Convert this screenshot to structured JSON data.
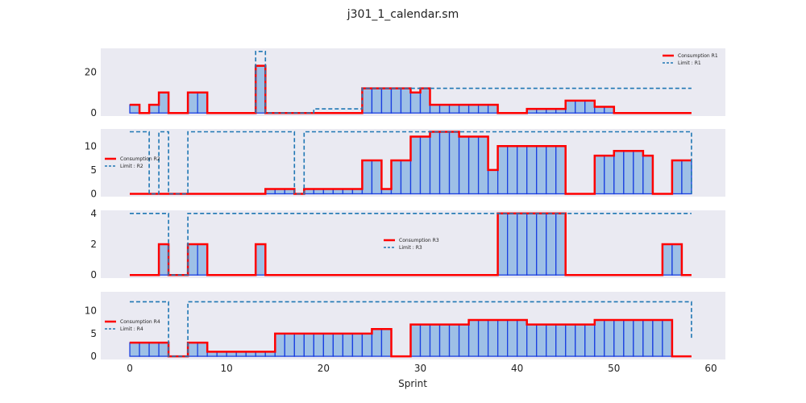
{
  "chart_data": {
    "type": "step",
    "title": "j301_1_calendar.sm",
    "xlabel": "Sprint",
    "xlim": [
      -3,
      61.5
    ],
    "xticks": [
      0,
      10,
      20,
      30,
      40,
      50,
      60
    ],
    "colors": {
      "consumption": "#ff0000",
      "limit": "#1f77b4",
      "fill": "#9ec0e6",
      "edge": "#1a3fe0",
      "background": "#eaeaf2"
    },
    "subplots": [
      {
        "resource": "R1",
        "ylim": [
          -1.5,
          31.5
        ],
        "yticks": [
          0,
          20
        ],
        "legend": {
          "placement": "top-right",
          "entries": [
            "Consumption R1",
            "Limit : R1"
          ]
        },
        "consumption": [
          [
            0,
            4
          ],
          [
            1,
            0
          ],
          [
            2,
            4
          ],
          [
            3,
            10
          ],
          [
            4,
            0
          ],
          [
            6,
            10
          ],
          [
            8,
            0
          ],
          [
            13,
            23
          ],
          [
            14,
            0
          ],
          [
            24,
            12
          ],
          [
            29,
            10
          ],
          [
            30,
            12
          ],
          [
            31,
            4
          ],
          [
            38,
            0
          ],
          [
            41,
            2
          ],
          [
            45,
            6
          ],
          [
            48,
            3
          ],
          [
            50,
            0
          ],
          [
            58,
            0
          ]
        ],
        "limit": [
          [
            13,
            0
          ],
          [
            13,
            30
          ],
          [
            14,
            30
          ],
          [
            14,
            0
          ],
          [
            19,
            0
          ],
          [
            19,
            2
          ],
          [
            24,
            2
          ],
          [
            24,
            12
          ],
          [
            58,
            12
          ]
        ]
      },
      {
        "resource": "R2",
        "ylim": [
          -0.6,
          13.6
        ],
        "yticks": [
          0,
          5,
          10
        ],
        "legend": {
          "placement": "center-left",
          "entries": [
            "Consumption R2",
            "Limit : R2"
          ]
        },
        "consumption": [
          [
            0,
            0
          ],
          [
            14,
            1
          ],
          [
            17,
            0
          ],
          [
            18,
            1
          ],
          [
            24,
            7
          ],
          [
            26,
            1
          ],
          [
            27,
            7
          ],
          [
            29,
            12
          ],
          [
            31,
            13
          ],
          [
            34,
            12
          ],
          [
            37,
            5
          ],
          [
            38,
            10
          ],
          [
            45,
            0
          ],
          [
            48,
            8
          ],
          [
            50,
            9
          ],
          [
            53,
            8
          ],
          [
            54,
            0
          ],
          [
            56,
            7
          ],
          [
            58,
            7
          ]
        ],
        "limit": [
          [
            0,
            13
          ],
          [
            2,
            13
          ],
          [
            2,
            0
          ],
          [
            3,
            0
          ],
          [
            3,
            13
          ],
          [
            4,
            13
          ],
          [
            4,
            0
          ],
          [
            6,
            0
          ],
          [
            6,
            13
          ],
          [
            17,
            13
          ],
          [
            17,
            0
          ],
          [
            18,
            0
          ],
          [
            18,
            13
          ],
          [
            58,
            13
          ],
          [
            58,
            0
          ]
        ]
      },
      {
        "resource": "R3",
        "ylim": [
          -0.2,
          4.2
        ],
        "yticks": [
          0,
          2,
          4
        ],
        "legend": {
          "placement": "center",
          "entries": [
            "Consumption R3",
            "Limit : R3"
          ]
        },
        "consumption": [
          [
            0,
            0
          ],
          [
            3,
            2
          ],
          [
            4,
            0
          ],
          [
            6,
            2
          ],
          [
            8,
            0
          ],
          [
            13,
            2
          ],
          [
            14,
            0
          ],
          [
            38,
            4
          ],
          [
            45,
            0
          ],
          [
            55,
            2
          ],
          [
            57,
            0
          ],
          [
            58,
            0
          ]
        ],
        "limit": [
          [
            0,
            4
          ],
          [
            4,
            4
          ],
          [
            4,
            0
          ],
          [
            6,
            0
          ],
          [
            6,
            4
          ],
          [
            58,
            4
          ]
        ]
      },
      {
        "resource": "R4",
        "ylim": [
          -0.7,
          14.2
        ],
        "yticks": [
          0,
          5,
          10
        ],
        "legend": {
          "placement": "center-left",
          "entries": [
            "Consumption R4",
            "Limit : R4"
          ]
        },
        "consumption": [
          [
            0,
            3
          ],
          [
            4,
            0
          ],
          [
            6,
            3
          ],
          [
            8,
            1
          ],
          [
            15,
            5
          ],
          [
            25,
            6
          ],
          [
            27,
            0
          ],
          [
            29,
            7
          ],
          [
            35,
            8
          ],
          [
            41,
            7
          ],
          [
            48,
            8
          ],
          [
            56,
            0
          ],
          [
            58,
            0
          ]
        ],
        "limit": [
          [
            0,
            12
          ],
          [
            4,
            12
          ],
          [
            4,
            0
          ],
          [
            6,
            0
          ],
          [
            6,
            12
          ],
          [
            58,
            12
          ],
          [
            58,
            4
          ]
        ]
      }
    ]
  }
}
